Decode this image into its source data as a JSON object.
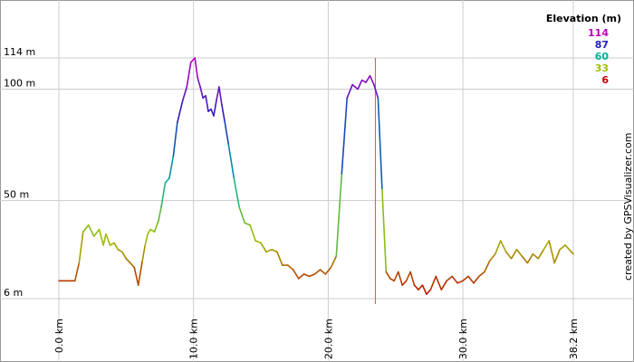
{
  "chart_data": {
    "type": "line",
    "xlabel": "",
    "ylabel": "",
    "xlim": [
      0,
      38.2
    ],
    "ylim": [
      6,
      114
    ],
    "x_ticks": [
      0,
      10,
      20,
      30,
      38.2
    ],
    "x_tick_labels": [
      "0.0 km",
      "10.0 km",
      "20.0 km",
      "30.0 km",
      "38.2 km"
    ],
    "y_ticks": [
      6,
      50,
      100,
      114
    ],
    "y_tick_labels": [
      "6 m",
      "50 m",
      "100 m",
      "114 m"
    ],
    "grid": true,
    "marker_x_km": 23.5,
    "series": [
      {
        "x": [
          0.0,
          1.2,
          1.5,
          1.8,
          2.2,
          2.6,
          3.0,
          3.3,
          3.5,
          3.8,
          4.1,
          4.4,
          4.7,
          5.0,
          5.3,
          5.6,
          5.9,
          6.2,
          6.4,
          6.6,
          6.8,
          7.1,
          7.4,
          7.6,
          7.9,
          8.2,
          8.5,
          8.8,
          9.2,
          9.5,
          9.8,
          10.1,
          10.3,
          10.5,
          10.7,
          10.9,
          11.1,
          11.3,
          11.5,
          11.7,
          11.9,
          12.1,
          12.3,
          12.6,
          13.0,
          13.4,
          13.8,
          14.2,
          14.6,
          15.0,
          15.4,
          15.8,
          16.2,
          16.6,
          17.0,
          17.4,
          17.8,
          18.2,
          18.6,
          19.0,
          19.4,
          19.8,
          20.2,
          20.6,
          21.0,
          21.4,
          21.8,
          22.2,
          22.5,
          22.8,
          23.1,
          23.4,
          23.7,
          24.0,
          24.3,
          24.6,
          24.9,
          25.2,
          25.5,
          25.8,
          26.1,
          26.4,
          26.7,
          27.0,
          27.3,
          27.6,
          28.0,
          28.4,
          28.8,
          29.2,
          29.6,
          30.0,
          30.4,
          30.8,
          31.2,
          31.6,
          32.0,
          32.4,
          32.8,
          33.2,
          33.6,
          34.0,
          34.4,
          34.8,
          35.2,
          35.6,
          36.0,
          36.4,
          36.8,
          37.2,
          37.6,
          38.2
        ],
        "values": [
          14,
          14,
          22,
          36,
          39,
          34,
          37,
          30,
          35,
          30,
          31,
          28,
          27,
          24,
          22,
          20,
          12,
          23,
          30,
          35,
          37,
          36,
          41,
          47,
          58,
          60,
          70,
          85,
          95,
          101,
          112,
          114,
          105,
          101,
          96,
          97,
          90,
          91,
          88,
          95,
          101,
          93,
          86,
          75,
          60,
          47,
          40,
          39,
          32,
          31,
          27,
          28,
          27,
          21,
          21,
          19,
          15,
          17,
          16,
          17,
          19,
          17,
          20,
          25,
          62,
          96,
          102,
          100,
          104,
          103,
          106,
          102,
          96,
          55,
          18,
          15,
          14,
          18,
          12,
          14,
          18,
          12,
          10,
          12,
          8,
          10,
          16,
          10,
          14,
          16,
          13,
          14,
          16,
          13,
          16,
          18,
          23,
          26,
          32,
          27,
          24,
          28,
          25,
          22,
          26,
          24,
          28,
          32,
          22,
          28,
          30,
          26
        ]
      }
    ],
    "legend": {
      "title": "Elevation (m)",
      "position": "top-right",
      "entries": [
        {
          "label": "114",
          "color": "#c000c0"
        },
        {
          "label": "87",
          "color": "#2020c0"
        },
        {
          "label": "60",
          "color": "#00b0a0"
        },
        {
          "label": "33",
          "color": "#a0c000"
        },
        {
          "label": "6",
          "color": "#c00000"
        }
      ]
    },
    "credit": "created by GPSVisualizer.com",
    "colors": {
      "grid": "#cccccc",
      "marker": "#e05050",
      "frame": "#999999"
    }
  }
}
